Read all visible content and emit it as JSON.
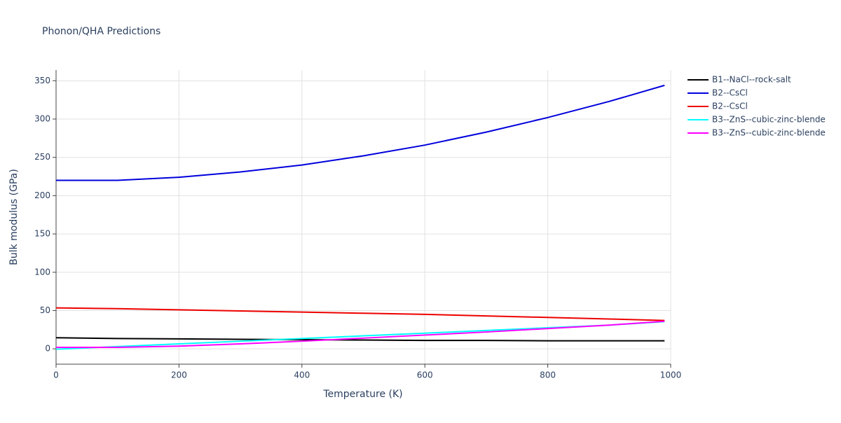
{
  "chart_data": {
    "type": "line",
    "title": "Phonon/QHA Predictions",
    "x_label": "Temperature (K)",
    "y_label": "Bulk modulus (GPa)",
    "x": [
      0,
      100,
      200,
      300,
      400,
      500,
      600,
      700,
      800,
      900,
      990
    ],
    "series": [
      {
        "name": "B1--NaCl--rock-salt",
        "color": "#000000",
        "values": [
          14.5,
          13.5,
          13,
          12.5,
          12,
          11.5,
          11,
          11,
          10.5,
          10.5,
          10.5
        ]
      },
      {
        "name": "B2--CsCl",
        "color": "#0000dd",
        "values": [
          220,
          220,
          224,
          231,
          240,
          252,
          266,
          283,
          302,
          323,
          344
        ]
      },
      {
        "name": "B2--CsCl",
        "color": "#ee0000",
        "values": [
          53.5,
          52.5,
          51,
          49.5,
          48,
          46.5,
          45,
          43,
          41,
          39,
          37
        ]
      },
      {
        "name": "B3--ZnS--cubic-zinc-blende",
        "color": "#00ffff",
        "values": [
          -0.5,
          3,
          6.5,
          10,
          13.5,
          17,
          20.5,
          24,
          27.5,
          31,
          35.5
        ]
      },
      {
        "name": "B3--ZnS--cubic-zinc-blende",
        "color": "#ff00ff",
        "values": [
          2,
          2,
          3.5,
          6.5,
          10,
          14,
          18,
          22,
          26.5,
          31,
          36
        ]
      }
    ],
    "xlim": [
      0,
      1000
    ],
    "xticks": [
      0,
      200,
      400,
      600,
      800,
      1000
    ],
    "ylim": [
      -20,
      364
    ],
    "yticks": [
      0,
      50,
      100,
      150,
      200,
      250,
      300,
      350
    ],
    "grid": true,
    "legend": "right"
  }
}
